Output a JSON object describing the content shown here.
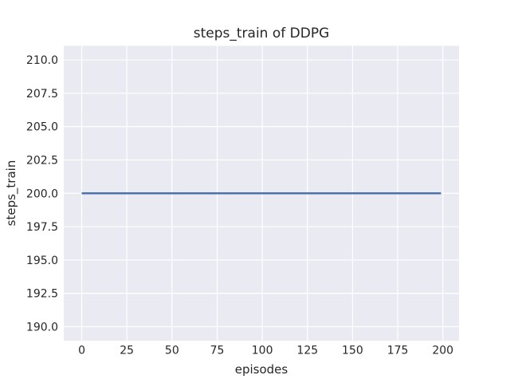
{
  "chart": {
    "title": "steps_train of DDPG",
    "xlabel": "episodes",
    "ylabel": "steps_train"
  },
  "chart_data": {
    "type": "line",
    "title": "steps_train of DDPG",
    "xlabel": "episodes",
    "ylabel": "steps_train",
    "series": [
      {
        "name": "steps_train",
        "x": [
          0,
          199
        ],
        "y": [
          200,
          200
        ]
      }
    ],
    "xlim": [
      -9.95,
      208.95
    ],
    "ylim": [
      188.95,
      211.05
    ],
    "xticks": [
      0,
      25,
      50,
      75,
      100,
      125,
      150,
      175,
      200
    ],
    "yticks": [
      190.0,
      192.5,
      195.0,
      197.5,
      200.0,
      202.5,
      205.0,
      207.5,
      210.0
    ],
    "xtick_labels": [
      "0",
      "25",
      "50",
      "75",
      "100",
      "125",
      "150",
      "175",
      "200"
    ],
    "ytick_labels": [
      "190.0",
      "192.5",
      "195.0",
      "197.5",
      "200.0",
      "202.5",
      "205.0",
      "207.5",
      "210.0"
    ],
    "grid": true,
    "legend": false,
    "style": {
      "line_color": "#4c72b0",
      "plot_bg": "#eaeaf2",
      "grid_color": "#ffffff",
      "text_color": "#262626",
      "figure_bg": "#ffffff"
    }
  }
}
